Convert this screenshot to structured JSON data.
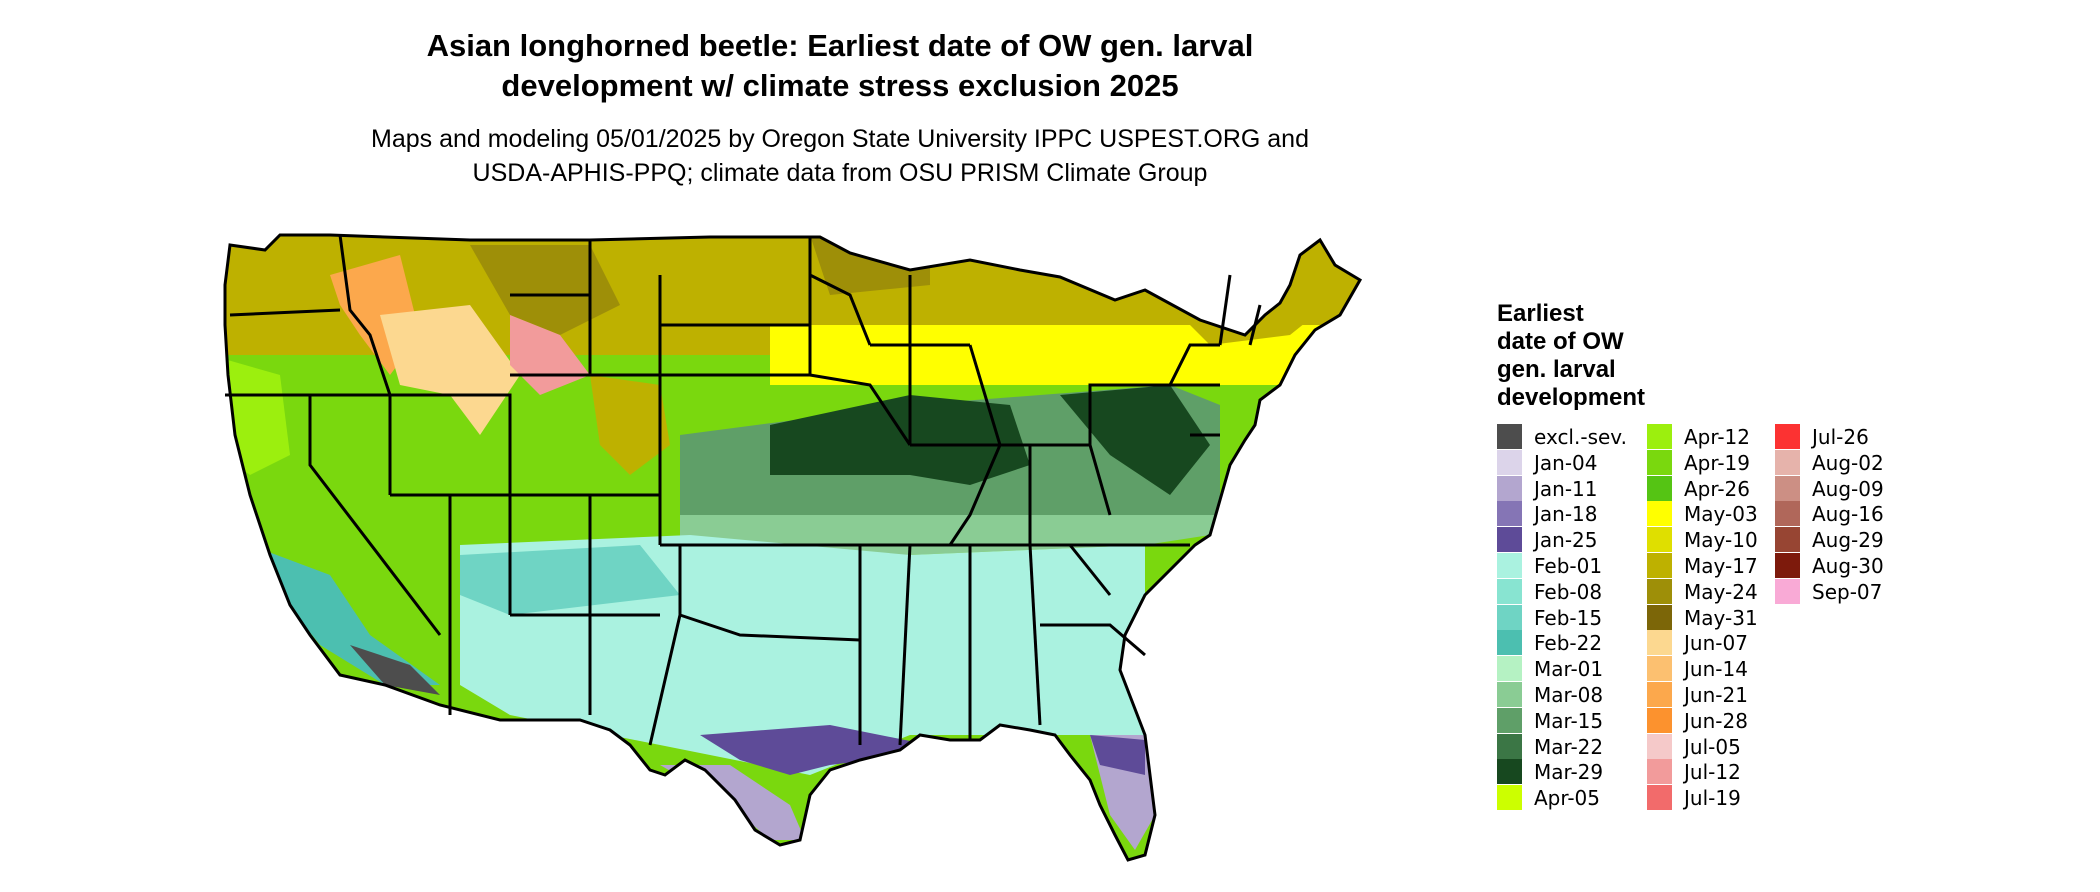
{
  "title_line1": "Asian longhorned beetle: Earliest date of OW gen. larval",
  "title_line2": "development w/ climate stress exclusion 2025",
  "subtitle_line1": "Maps and modeling 05/01/2025 by Oregon State University IPPC USPEST.ORG and",
  "subtitle_line2": "USDA-APHIS-PPQ; climate data from OSU PRISM Climate Group",
  "legend": {
    "title_lines": [
      "Earliest",
      "date of OW",
      "gen. larval",
      "development"
    ],
    "columns": [
      [
        {
          "label": "excl.-sev.",
          "color": "#4d4d4d"
        },
        {
          "label": "Jan-04",
          "color": "#dcd4ea"
        },
        {
          "label": "Jan-11",
          "color": "#b3a6cf"
        },
        {
          "label": "Jan-18",
          "color": "#8575b5"
        },
        {
          "label": "Jan-25",
          "color": "#5e4b98"
        },
        {
          "label": "Feb-01",
          "color": "#aaf2e0"
        },
        {
          "label": "Feb-08",
          "color": "#88e4d1"
        },
        {
          "label": "Feb-15",
          "color": "#6fd4c4"
        },
        {
          "label": "Feb-22",
          "color": "#4cbfb0"
        },
        {
          "label": "Mar-01",
          "color": "#b5f2c3"
        },
        {
          "label": "Mar-08",
          "color": "#8acc94"
        },
        {
          "label": "Mar-15",
          "color": "#5f9f68"
        },
        {
          "label": "Mar-22",
          "color": "#3b7645"
        },
        {
          "label": "Mar-29",
          "color": "#17481f"
        },
        {
          "label": "Apr-05",
          "color": "#ccff00"
        }
      ],
      [
        {
          "label": "Apr-12",
          "color": "#9cef0e"
        },
        {
          "label": "Apr-19",
          "color": "#7ad80e"
        },
        {
          "label": "Apr-26",
          "color": "#55c414"
        },
        {
          "label": "May-03",
          "color": "#ffff00"
        },
        {
          "label": "May-10",
          "color": "#dfdf00"
        },
        {
          "label": "May-17",
          "color": "#beb100"
        },
        {
          "label": "May-24",
          "color": "#9e8f08"
        },
        {
          "label": "May-31",
          "color": "#7c6608"
        },
        {
          "label": "Jun-07",
          "color": "#fcd890"
        },
        {
          "label": "Jun-14",
          "color": "#fcc070"
        },
        {
          "label": "Jun-21",
          "color": "#fca84c"
        },
        {
          "label": "Jun-28",
          "color": "#fc922e"
        },
        {
          "label": "Jul-05",
          "color": "#f5c9c9"
        },
        {
          "label": "Jul-12",
          "color": "#f29b9b"
        },
        {
          "label": "Jul-19",
          "color": "#f26b6b"
        }
      ],
      [
        {
          "label": "Jul-26",
          "color": "#fc3232"
        },
        {
          "label": "Aug-02",
          "color": "#e6b3ab"
        },
        {
          "label": "Aug-09",
          "color": "#cc8f84"
        },
        {
          "label": "Aug-16",
          "color": "#b0675a"
        },
        {
          "label": "Aug-29",
          "color": "#974533"
        },
        {
          "label": "Aug-30",
          "color": "#7d1a0c"
        },
        {
          "label": "Sep-07",
          "color": "#f9aad6"
        }
      ]
    ]
  }
}
